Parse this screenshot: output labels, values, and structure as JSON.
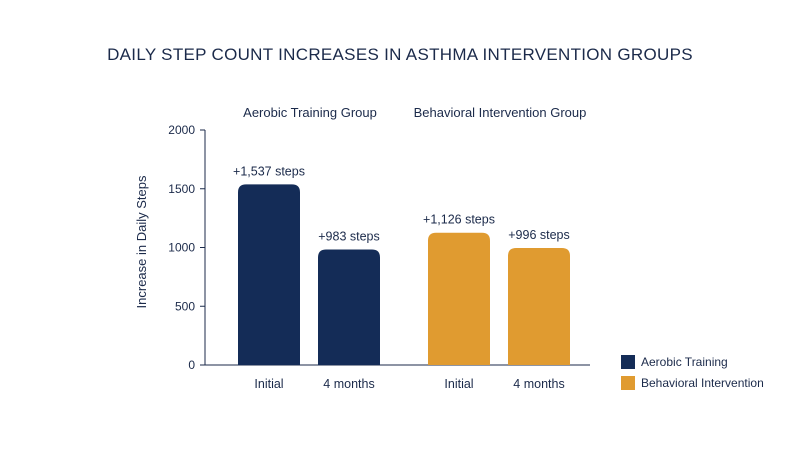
{
  "chart_data": {
    "type": "bar",
    "title": "DAILY STEP COUNT INCREASES IN ASTHMA INTERVENTION GROUPS",
    "ylabel": "Increase in Daily Steps",
    "xlabel": "",
    "ylim": [
      0,
      2000
    ],
    "yticks": [
      0,
      500,
      1000,
      1500,
      2000
    ],
    "grid": false,
    "legend_position": "bottom-right",
    "groups": [
      {
        "name": "Aerobic Training Group",
        "series": "Aerobic Training",
        "color": "#142c57",
        "bars": [
          {
            "category": "Initial",
            "value": 1537,
            "label": "+1,537 steps"
          },
          {
            "category": "4 months",
            "value": 983,
            "label": "+983 steps"
          }
        ]
      },
      {
        "name": "Behavioral Intervention Group",
        "series": "Behavioral Intervention",
        "color": "#e09b30",
        "bars": [
          {
            "category": "Initial",
            "value": 1126,
            "label": "+1,126 steps"
          },
          {
            "category": "4 months",
            "value": 996,
            "label": "+996 steps"
          }
        ]
      }
    ],
    "legend": [
      {
        "label": "Aerobic Training",
        "color": "#142c57"
      },
      {
        "label": "Behavioral Intervention",
        "color": "#e09b30"
      }
    ]
  }
}
